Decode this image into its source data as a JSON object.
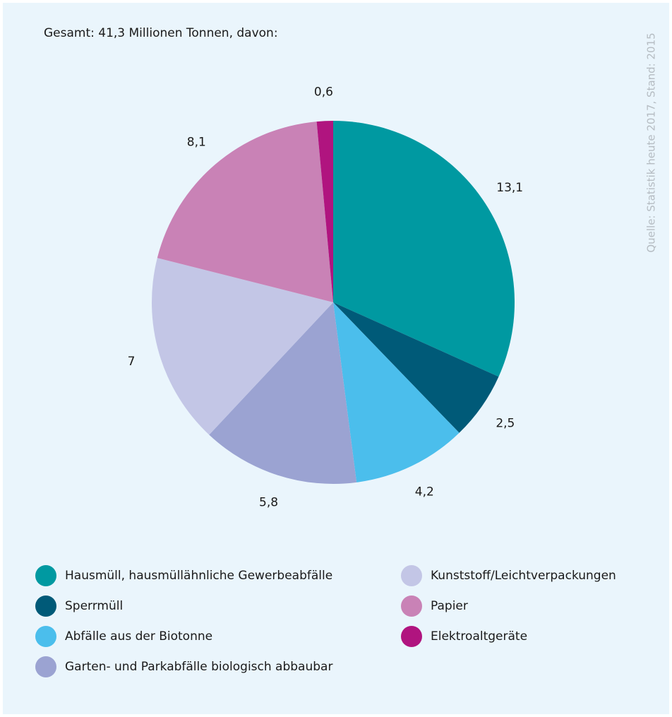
{
  "chart_data": {
    "type": "pie",
    "title": "Gesamt: 41,3 Millionen Tonnen, davon:",
    "source": "Quelle: Statistik heute 2017, Stand: 2015",
    "categories": [
      "Hausmüll, hausmüllähnliche Gewerbeabfälle",
      "Sperrmüll",
      "Abfälle aus der Biotonne",
      "Garten- und Parkabfälle biologisch abbaubar",
      "Kunststoff/Leichtverpackungen",
      "Papier",
      "Elektroaltgeräte"
    ],
    "values": [
      13.1,
      2.5,
      4.2,
      5.8,
      7,
      8.1,
      0.6
    ],
    "value_labels": [
      "13,1",
      "2,5",
      "4,2",
      "5,8",
      "7",
      "8,1",
      "0,6"
    ],
    "colors": [
      "#0099a1",
      "#005a78",
      "#4bbeec",
      "#9ba3d2",
      "#c3c6e6",
      "#c982b6",
      "#b0147f"
    ]
  }
}
